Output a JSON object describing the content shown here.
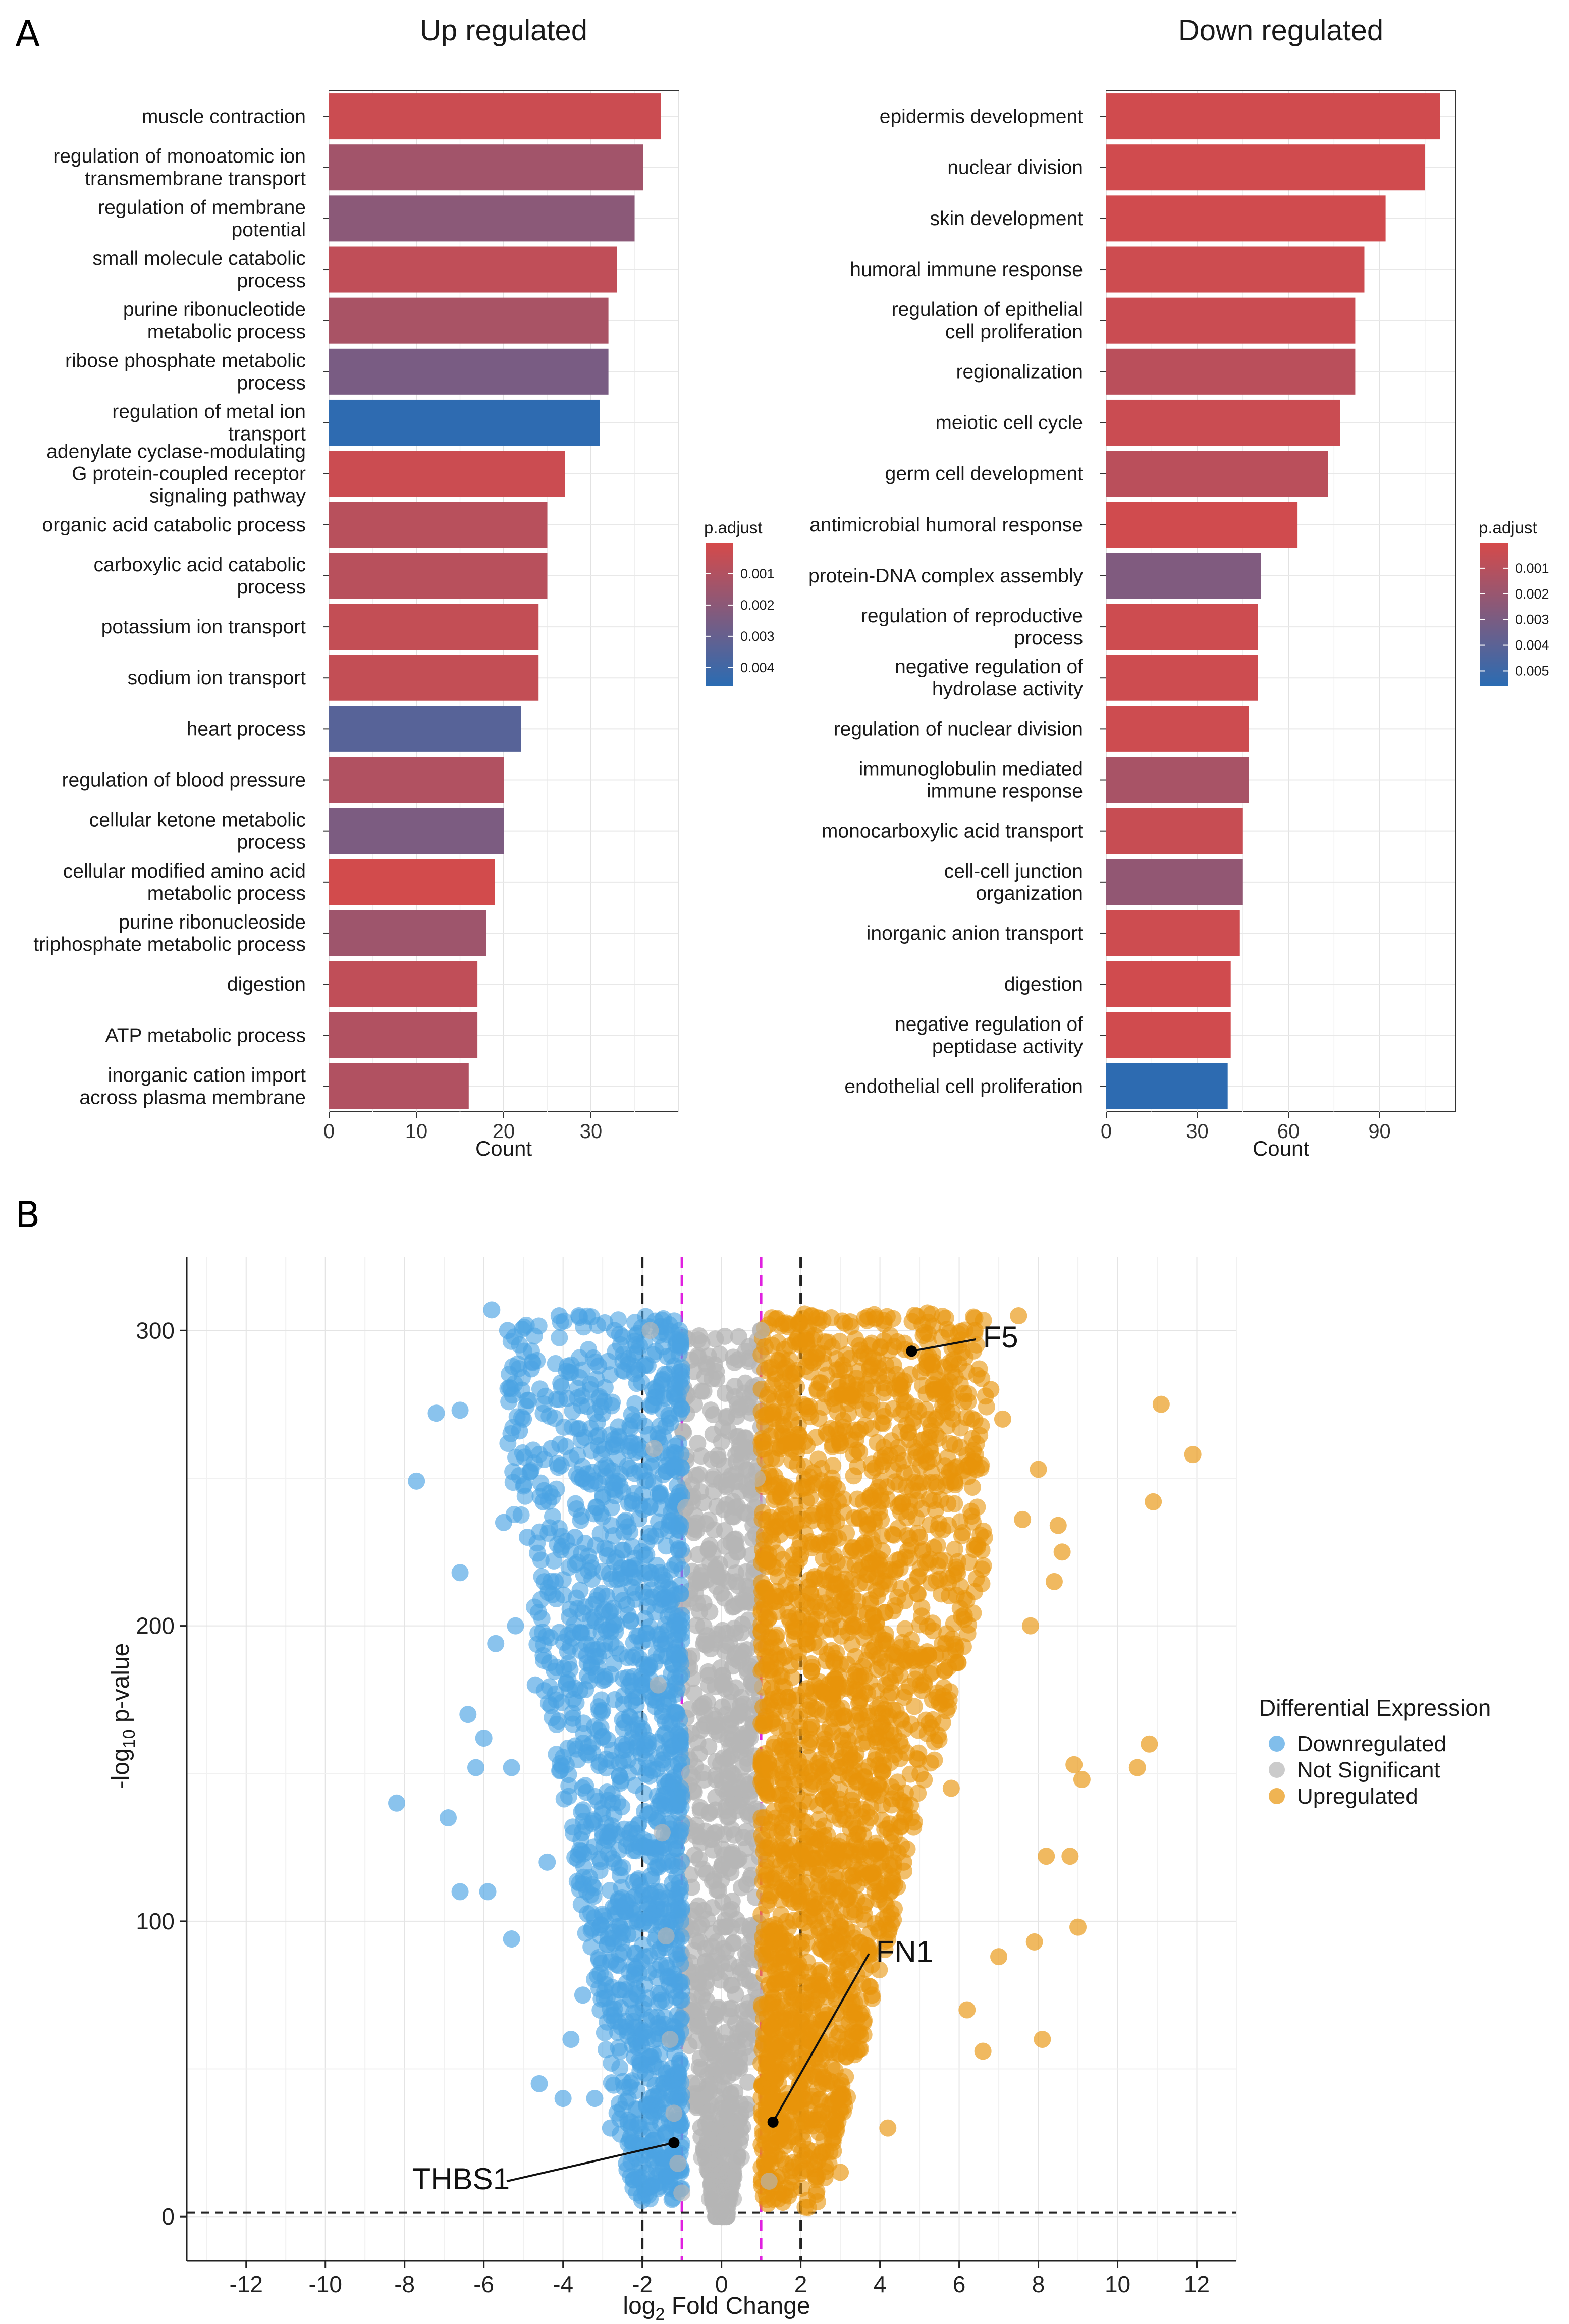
{
  "figure": {
    "panel_a_label": "A",
    "panel_b_label": "B"
  },
  "colors": {
    "padj_low": "#D64A4A",
    "padj_high": "#2A6CB3",
    "downregulated": "#4BA3E3",
    "not_significant": "#B5B5B5",
    "upregulated": "#E8940A",
    "threshold_black": "#222222",
    "threshold_magenta": "#E020E0"
  },
  "chart_data": [
    {
      "type": "bar",
      "orientation": "horizontal",
      "title": "Up regulated",
      "xlabel": "Count",
      "ylabel": "",
      "xlim": [
        0,
        40
      ],
      "xticks": [
        0,
        10,
        20,
        30
      ],
      "grid": true,
      "categories": [
        "muscle contraction",
        "regulation of monoatomic ion\ntransmembrane transport",
        "regulation of membrane\npotential",
        "small molecule catabolic\nprocess",
        "purine ribonucleotide\nmetabolic process",
        "ribose phosphate metabolic\nprocess",
        "regulation of metal ion\ntransport",
        "adenylate cyclase-modulating\nG protein-coupled receptor\nsignaling pathway",
        "organic acid catabolic process",
        "carboxylic acid catabolic\nprocess",
        "potassium ion transport",
        "sodium ion transport",
        "heart process",
        "regulation of blood pressure",
        "cellular ketone metabolic\nprocess",
        "cellular modified amino acid\nmetabolic process",
        "purine ribonucleoside\ntriphosphate metabolic process",
        "digestion",
        "ATP metabolic process",
        "inorganic cation import\nacross plasma membrane"
      ],
      "values": [
        38,
        36,
        35,
        33,
        32,
        32,
        31,
        27,
        25,
        25,
        24,
        24,
        22,
        20,
        20,
        19,
        18,
        17,
        17,
        16
      ],
      "p_adjust": [
        0.0003,
        0.0014,
        0.002,
        0.0006,
        0.0012,
        0.0025,
        0.0045,
        0.0003,
        0.0008,
        0.0008,
        0.0005,
        0.0005,
        0.0034,
        0.001,
        0.0024,
        0.0001,
        0.0015,
        0.0006,
        0.001,
        0.001
      ],
      "legend": {
        "title": "p.adjust",
        "ticks": [
          "0.001",
          "0.002",
          "0.003",
          "0.004"
        ],
        "tick_values": [
          0.001,
          0.002,
          0.003,
          0.004
        ],
        "range": [
          0.0,
          0.0046
        ],
        "position": "right"
      }
    },
    {
      "type": "bar",
      "orientation": "horizontal",
      "title": "Down regulated",
      "xlabel": "Count",
      "ylabel": "",
      "xlim": [
        0,
        115
      ],
      "xticks": [
        0,
        30,
        60,
        90
      ],
      "grid": true,
      "categories": [
        "epidermis development",
        "nuclear division",
        "skin development",
        "humoral immune response",
        "regulation of epithelial\ncell proliferation",
        "regionalization",
        "meiotic cell cycle",
        "germ cell development",
        "antimicrobial humoral response",
        "protein-DNA complex assembly",
        "regulation of reproductive\nprocess",
        "negative regulation of\nhydrolase activity",
        "regulation of nuclear division",
        "immunoglobulin mediated\nimmune response",
        "monocarboxylic acid transport",
        "cell-cell junction\norganization",
        "inorganic anion transport",
        "digestion",
        "negative regulation of\npeptidase activity",
        "endothelial cell proliferation"
      ],
      "values": [
        110,
        105,
        92,
        85,
        82,
        82,
        77,
        73,
        63,
        51,
        50,
        50,
        47,
        47,
        45,
        45,
        44,
        41,
        41,
        40
      ],
      "p_adjust": [
        0.0002,
        0.0002,
        0.0002,
        0.0003,
        0.0004,
        0.0009,
        0.0004,
        0.0009,
        0.0002,
        0.0028,
        0.0003,
        0.0003,
        0.0003,
        0.0015,
        0.0005,
        0.0022,
        0.0003,
        0.0002,
        0.0002,
        0.0055
      ],
      "legend": {
        "title": "p.adjust",
        "ticks": [
          "0.001",
          "0.002",
          "0.003",
          "0.004",
          "0.005"
        ],
        "tick_values": [
          0.001,
          0.002,
          0.003,
          0.004,
          0.005
        ],
        "range": [
          0.0,
          0.0056
        ],
        "position": "right"
      }
    },
    {
      "type": "scatter",
      "subtype": "volcano",
      "title": "",
      "xlabel": "log2 Fold Change",
      "xlabel_main": "log",
      "xlabel_sub": "2",
      "xlabel_rest": " Fold Change",
      "ylabel": "-log10 p-value",
      "ylabel_pre": "-log",
      "ylabel_sub": "10",
      "ylabel_rest": " p-value",
      "xlim": [
        -13.5,
        13.0
      ],
      "ylim": [
        -15,
        325
      ],
      "xticks": [
        -12,
        -10,
        -8,
        -6,
        -4,
        -2,
        0,
        2,
        4,
        6,
        8,
        10,
        12
      ],
      "yticks": [
        0,
        100,
        200,
        300
      ],
      "grid": true,
      "thresholds": {
        "fold_change_outer": [
          -2,
          2
        ],
        "fold_change_inner": [
          -1,
          1
        ],
        "pvalue_line": 1.3
      },
      "legend": {
        "title": "Differential Expression",
        "position": "right",
        "entries": [
          "Downregulated",
          "Not Significant",
          "Upregulated"
        ]
      },
      "series": [
        {
          "name": "Downregulated",
          "points": [
            [
              -8.2,
              140
            ],
            [
              -7.7,
              249
            ],
            [
              -7.2,
              272
            ],
            [
              -6.9,
              135
            ],
            [
              -6.6,
              110
            ],
            [
              -6.6,
              218
            ],
            [
              -6.6,
              273
            ],
            [
              -6.4,
              170
            ],
            [
              -6.2,
              152
            ],
            [
              -6.0,
              162
            ],
            [
              -5.9,
              110
            ],
            [
              -5.8,
              307
            ],
            [
              -5.7,
              194
            ],
            [
              -5.5,
              235
            ],
            [
              -5.4,
              300
            ],
            [
              -5.3,
              152
            ],
            [
              -5.3,
              94
            ],
            [
              -5.2,
              200
            ],
            [
              -5.1,
              266
            ],
            [
              -5.0,
              270
            ],
            [
              -4.9,
              230
            ],
            [
              -4.8,
              287
            ],
            [
              -4.7,
              180
            ],
            [
              -4.6,
              45
            ],
            [
              -4.5,
              242
            ],
            [
              -4.4,
              120
            ],
            [
              -4.3,
              260
            ],
            [
              -4.2,
              215
            ],
            [
              -4.1,
              305
            ],
            [
              -4.0,
              40
            ],
            [
              -3.9,
              277
            ],
            [
              -3.8,
              60
            ],
            [
              -3.7,
              230
            ],
            [
              -3.6,
              305
            ],
            [
              -3.5,
              75
            ],
            [
              -3.4,
              190
            ],
            [
              -3.3,
              248
            ],
            [
              -3.2,
              40
            ],
            [
              -3.1,
              288
            ],
            [
              -3.0,
              130
            ],
            [
              -2.9,
              210
            ],
            [
              -2.8,
              30
            ],
            [
              -2.7,
              300
            ],
            [
              -2.6,
              85
            ],
            [
              -2.5,
              160
            ],
            [
              -2.4,
              18
            ],
            [
              -2.3,
              262
            ],
            [
              -2.2,
              54
            ]
          ],
          "highlight": {
            "label": "THBS1",
            "x": -1.2,
            "y": 25
          }
        },
        {
          "name": "Not Significant",
          "points": [
            [
              -1.8,
              300
            ],
            [
              -1.7,
              260
            ],
            [
              -1.6,
              180
            ],
            [
              -1.5,
              130
            ],
            [
              -1.4,
              95
            ],
            [
              -1.3,
              60
            ],
            [
              -1.2,
              35
            ],
            [
              -1.1,
              18
            ],
            [
              -1.0,
              8
            ],
            [
              -0.9,
              240
            ],
            [
              -0.8,
              150
            ],
            [
              -0.7,
              90
            ],
            [
              -0.6,
              45
            ],
            [
              -0.5,
              20
            ],
            [
              -0.3,
              6
            ],
            [
              0.0,
              2
            ],
            [
              0.3,
              6
            ],
            [
              0.5,
              20
            ],
            [
              0.6,
              60
            ],
            [
              0.7,
              120
            ],
            [
              0.8,
              180
            ],
            [
              0.9,
              250
            ],
            [
              1.0,
              300
            ],
            [
              1.2,
              12
            ]
          ]
        },
        {
          "name": "Upregulated",
          "points": [
            [
              4.8,
              293
            ],
            [
              6.0,
              295
            ],
            [
              6.4,
              300
            ],
            [
              6.8,
              280
            ],
            [
              7.1,
              270
            ],
            [
              7.5,
              305
            ],
            [
              7.6,
              236
            ],
            [
              7.8,
              200
            ],
            [
              8.0,
              253
            ],
            [
              8.1,
              60
            ],
            [
              8.2,
              122
            ],
            [
              8.4,
              215
            ],
            [
              8.5,
              234
            ],
            [
              8.6,
              225
            ],
            [
              8.8,
              122
            ],
            [
              8.9,
              153
            ],
            [
              9.0,
              98
            ],
            [
              9.1,
              148
            ],
            [
              10.5,
              152
            ],
            [
              10.8,
              160
            ],
            [
              10.9,
              242
            ],
            [
              11.1,
              275
            ],
            [
              11.9,
              258
            ],
            [
              7.9,
              93
            ],
            [
              7.0,
              88
            ],
            [
              6.6,
              56
            ],
            [
              6.2,
              70
            ],
            [
              5.8,
              145
            ],
            [
              5.4,
              190
            ],
            [
              5.0,
              230
            ],
            [
              4.6,
              120
            ],
            [
              4.2,
              30
            ],
            [
              3.8,
              75
            ],
            [
              3.4,
              200
            ],
            [
              3.0,
              15
            ],
            [
              2.6,
              160
            ]
          ],
          "highlights": [
            {
              "label": "F5",
              "x": 4.8,
              "y": 293
            },
            {
              "label": "FN1",
              "x": 1.3,
              "y": 32
            }
          ]
        }
      ]
    }
  ]
}
